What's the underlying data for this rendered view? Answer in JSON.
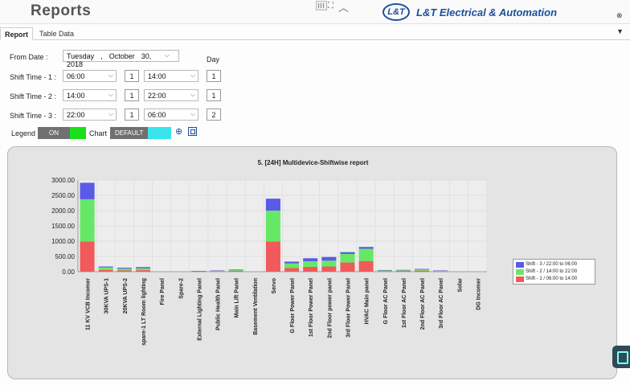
{
  "header": {
    "title": "Reports",
    "brand": "L&T Electrical & Automation",
    "brand_logo_text": "L&T"
  },
  "tabs": [
    {
      "label": "Report"
    },
    {
      "label": "Table Data"
    }
  ],
  "form": {
    "from_date_label": "From Date :",
    "date": {
      "weekday": "Tuesday",
      "sep": ",",
      "month": "October",
      "day": "30, 2018"
    },
    "day_header": "Day",
    "shifts": [
      {
        "label": "Shift Time - 1 :",
        "start": "06:00",
        "start_day": "1",
        "end": "14:00",
        "end_day": "1"
      },
      {
        "label": "Shift Time - 2 :",
        "start": "14:00",
        "start_day": "1",
        "end": "22:00",
        "end_day": "1"
      },
      {
        "label": "Shift Time - 3 :",
        "start": "22:00",
        "start_day": "1",
        "end": "06:00",
        "end_day": "2"
      }
    ],
    "legend_label": "Legend",
    "legend_toggle": "ON",
    "chart_label": "Chart",
    "chart_toggle": "DEFAULT",
    "icons": {
      "zoom": "zoom-in-icon",
      "fit": "fit-screen-icon"
    },
    "colors": {
      "legend_on": "#1adf1a",
      "chart_default": "#3ae4ea"
    }
  },
  "chart_data": {
    "type": "bar",
    "stacked": true,
    "title": "5.   [24H] Multidevice-Shiftwise report",
    "xlabel": "",
    "ylabel": "",
    "ylim": [
      0,
      3000
    ],
    "yticks": [
      "0.00",
      "500.00",
      "1000.00",
      "1500.00",
      "2000.00",
      "2500.00",
      "3000.00"
    ],
    "grid": true,
    "legend_placement": "right",
    "categories": [
      "11 KV VCB Incomer",
      "30KVA UPS-1",
      "20KVA UPS-2",
      "spare-1 LT Room lighting",
      "Fire Panel",
      "Spare-2",
      "External Lighting Panel",
      "Public Health Panel",
      "Main Lift Panel",
      "Basement Ventilation",
      "Servo",
      "G Floor Power Panel",
      "1st Floor Power Panel",
      "2nd Floor power panel",
      "3rd Floor Power Panel",
      "HVAC Main panel",
      "G Floor AC Panel",
      "1st Floor AC Panel",
      "2nd Floor AC Panel",
      "3rd Floor AC Panel",
      "Solar",
      "DG Incomer"
    ],
    "series": [
      {
        "name": "Shift - 1 / 06:00 to 14:00",
        "color": "#f05a5a",
        "values": [
          990,
          60,
          40,
          50,
          0,
          0,
          10,
          15,
          25,
          0,
          990,
          120,
          160,
          170,
          300,
          350,
          20,
          25,
          35,
          15,
          0,
          0
        ]
      },
      {
        "name": "Shift - 2 / 14:00 to 22:00",
        "color": "#66e866",
        "values": [
          1380,
          80,
          60,
          60,
          0,
          0,
          10,
          15,
          25,
          0,
          1010,
          150,
          180,
          190,
          280,
          400,
          20,
          20,
          35,
          15,
          0,
          0
        ]
      },
      {
        "name": "Shift - 3 / 22:00 to 06:00",
        "color": "#5a5ae8",
        "values": [
          540,
          30,
          30,
          40,
          0,
          0,
          5,
          10,
          20,
          0,
          390,
          60,
          100,
          120,
          60,
          60,
          15,
          15,
          20,
          10,
          0,
          0
        ]
      }
    ]
  }
}
